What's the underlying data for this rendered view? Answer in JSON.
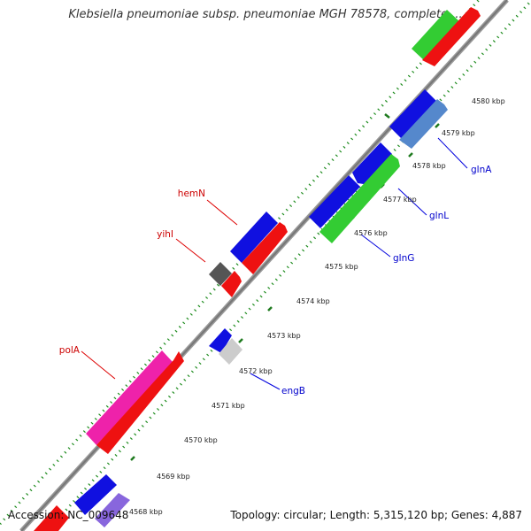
{
  "header": {
    "title": "Klebsiella pneumoniae subsp. pneumoniae MGH 78578, complete ..."
  },
  "footer": {
    "accession": "Accession: NC_009648",
    "summary": "Topology: circular; Length: 5,315,120 bp; Genes: 4,887"
  },
  "map": {
    "scale_labels": [
      "4568 kbp",
      "4569 kbp",
      "4570 kbp",
      "4571 kbp",
      "4572 kbp",
      "4573 kbp",
      "4574 kbp",
      "4575 kbp",
      "4576 kbp",
      "4577 kbp",
      "4578 kbp",
      "4579 kbp",
      "4580 kbp"
    ],
    "gene_labels": {
      "hemN": "hemN",
      "yihI": "yihI",
      "polA": "polA",
      "glnA": "glnA",
      "glnL": "glnL",
      "glnG": "glnG",
      "engB": "engB"
    },
    "colors": {
      "backbone": "#888888",
      "ticks": "#1e8c1e",
      "leader_top_strand": "#dd0000",
      "leader_bottom_strand": "#0000dd",
      "blue": "#1010e0",
      "red": "#ee1111",
      "green": "#33cc33",
      "magenta": "#ee22aa",
      "steelblue": "#5588cc",
      "gray": "#555555",
      "lightgray": "#cccccc",
      "lavender": "#8866dd"
    }
  }
}
